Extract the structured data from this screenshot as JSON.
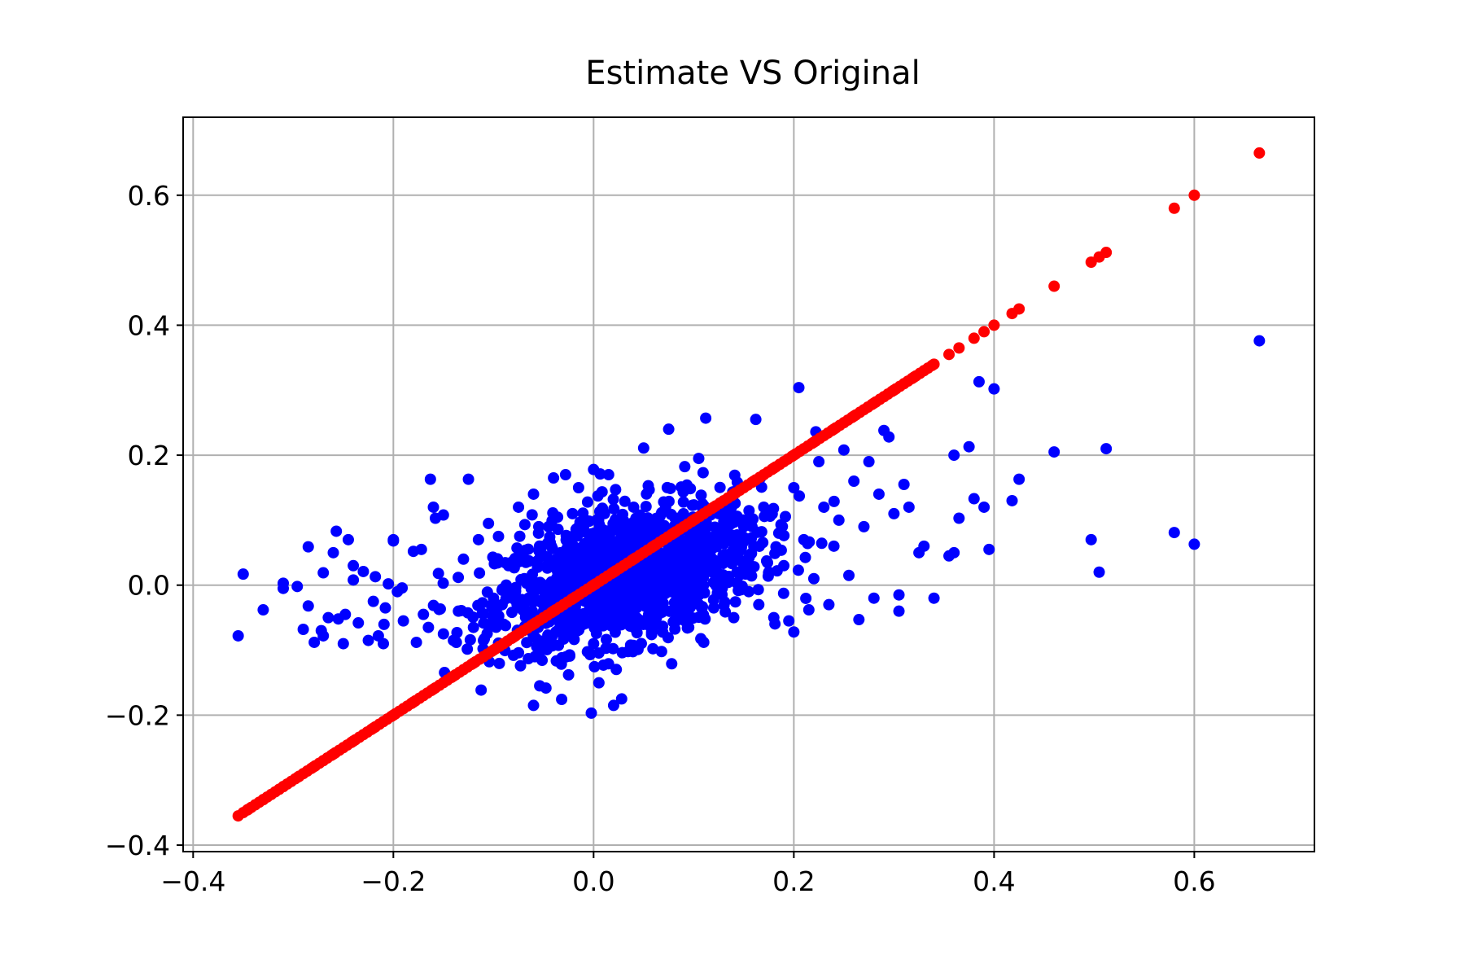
{
  "chart_data": {
    "type": "scatter",
    "title": "Estimate VS Original",
    "xlabel": "",
    "ylabel": "",
    "xlim": [
      -0.41,
      0.72
    ],
    "ylim": [
      -0.41,
      0.72
    ],
    "grid": true,
    "xticks": [
      -0.4,
      -0.2,
      0.0,
      0.2,
      0.4,
      0.6
    ],
    "yticks": [
      -0.4,
      -0.2,
      0.0,
      0.2,
      0.4,
      0.6
    ],
    "xtick_labels": [
      "−0.4",
      "−0.2",
      "0.0",
      "0.2",
      "0.4",
      "0.6"
    ],
    "ytick_labels": [
      "−0.4",
      "−0.2",
      "0.0",
      "0.2",
      "0.4",
      "0.6"
    ],
    "series": [
      {
        "color": "#0000ff",
        "points": [
          [
            -0.355,
            -0.078
          ],
          [
            -0.35,
            0.017
          ],
          [
            -0.33,
            -0.038
          ],
          [
            -0.31,
            -0.005
          ],
          [
            -0.31,
            0.003
          ],
          [
            -0.296,
            -0.002
          ],
          [
            -0.29,
            -0.068
          ],
          [
            -0.285,
            -0.032
          ],
          [
            -0.285,
            0.059
          ],
          [
            -0.279,
            -0.088
          ],
          [
            -0.272,
            -0.07
          ],
          [
            -0.27,
            0.019
          ],
          [
            -0.27,
            -0.078
          ],
          [
            -0.265,
            -0.05
          ],
          [
            -0.26,
            0.05
          ],
          [
            -0.257,
            0.083
          ],
          [
            -0.255,
            -0.052
          ],
          [
            -0.25,
            -0.09
          ],
          [
            -0.248,
            -0.045
          ],
          [
            -0.245,
            0.07
          ],
          [
            -0.24,
            0.03
          ],
          [
            -0.24,
            0.008
          ],
          [
            -0.235,
            -0.058
          ],
          [
            -0.23,
            0.021
          ],
          [
            -0.225,
            -0.085
          ],
          [
            -0.22,
            -0.025
          ],
          [
            -0.218,
            0.013
          ],
          [
            -0.215,
            -0.078
          ],
          [
            -0.21,
            -0.09
          ],
          [
            -0.208,
            -0.035
          ],
          [
            -0.205,
            0.002
          ],
          [
            -0.2,
            0.07
          ],
          [
            -0.2,
            0.068
          ],
          [
            -0.196,
            -0.01
          ],
          [
            -0.19,
            -0.055
          ],
          [
            -0.18,
            0.052
          ],
          [
            -0.177,
            -0.088
          ],
          [
            -0.172,
            0.055
          ],
          [
            -0.17,
            -0.045
          ],
          [
            -0.165,
            -0.065
          ],
          [
            -0.163,
            0.163
          ],
          [
            -0.16,
            0.12
          ],
          [
            -0.158,
            0.103
          ],
          [
            -0.155,
            0.018
          ],
          [
            -0.15,
            0.108
          ],
          [
            -0.15,
            -0.075
          ],
          [
            -0.14,
            -0.085
          ],
          [
            -0.135,
            -0.04
          ],
          [
            -0.13,
            0.04
          ],
          [
            -0.125,
            0.163
          ],
          [
            -0.12,
            -0.065
          ],
          [
            -0.115,
            0.07
          ],
          [
            -0.11,
            -0.085
          ],
          [
            -0.105,
            0.095
          ],
          [
            -0.1,
            -0.02
          ],
          [
            -0.095,
            0.075
          ],
          [
            -0.09,
            -0.06
          ],
          [
            -0.085,
            0.03
          ],
          [
            -0.08,
            -0.108
          ],
          [
            -0.075,
            0.12
          ],
          [
            -0.07,
            0.05
          ],
          [
            -0.065,
            -0.02
          ],
          [
            -0.06,
            0.14
          ],
          [
            -0.06,
            -0.185
          ],
          [
            -0.055,
            0.08
          ],
          [
            -0.05,
            -0.04
          ],
          [
            -0.045,
            0.09
          ],
          [
            -0.04,
            0.165
          ],
          [
            -0.035,
            0.02
          ],
          [
            -0.03,
            -0.083
          ],
          [
            -0.028,
            0.17
          ],
          [
            -0.025,
            -0.138
          ],
          [
            -0.02,
            0.06
          ],
          [
            -0.015,
            0.15
          ],
          [
            -0.01,
            -0.06
          ],
          [
            -0.005,
            0.03
          ],
          [
            0.0,
            0.178
          ],
          [
            0.0,
            -0.09
          ],
          [
            0.005,
            0.1
          ],
          [
            0.01,
            -0.02
          ],
          [
            0.015,
            0.17
          ],
          [
            0.02,
            -0.185
          ],
          [
            0.022,
            0.147
          ],
          [
            0.028,
            -0.175
          ],
          [
            0.03,
            0.04
          ],
          [
            0.035,
            -0.06
          ],
          [
            0.04,
            0.12
          ],
          [
            0.045,
            0.0
          ],
          [
            0.05,
            0.211
          ],
          [
            0.055,
            -0.045
          ],
          [
            0.06,
            0.09
          ],
          [
            0.065,
            0.02
          ],
          [
            0.07,
            0.128
          ],
          [
            0.075,
            0.24
          ],
          [
            0.078,
            -0.121
          ],
          [
            0.08,
            0.05
          ],
          [
            0.085,
            -0.02
          ],
          [
            0.09,
            0.09
          ],
          [
            0.095,
            -0.065
          ],
          [
            0.1,
            0.03
          ],
          [
            0.105,
            0.195
          ],
          [
            0.11,
            -0.088
          ],
          [
            0.112,
            0.257
          ],
          [
            0.115,
            0.06
          ],
          [
            0.12,
            -0.035
          ],
          [
            0.125,
            0.11
          ],
          [
            0.13,
            0.015
          ],
          [
            0.135,
            0.07
          ],
          [
            0.14,
            -0.05
          ],
          [
            0.145,
            0.04
          ],
          [
            0.15,
            0.09
          ],
          [
            0.155,
            -0.01
          ],
          [
            0.16,
            0.06
          ],
          [
            0.162,
            0.255
          ],
          [
            0.165,
            -0.03
          ],
          [
            0.17,
            0.12
          ],
          [
            0.175,
            0.02
          ],
          [
            0.18,
            -0.05
          ],
          [
            0.185,
            0.08
          ],
          [
            0.19,
            0.03
          ],
          [
            0.195,
            -0.055
          ],
          [
            0.2,
            0.15
          ],
          [
            0.2,
            -0.072
          ],
          [
            0.205,
            0.304
          ],
          [
            0.21,
            0.07
          ],
          [
            0.215,
            -0.038
          ],
          [
            0.22,
            0.01
          ],
          [
            0.222,
            0.236
          ],
          [
            0.225,
            0.19
          ],
          [
            0.23,
            0.12
          ],
          [
            0.235,
            -0.03
          ],
          [
            0.24,
            0.06
          ],
          [
            0.245,
            0.1
          ],
          [
            0.25,
            0.208
          ],
          [
            0.255,
            0.015
          ],
          [
            0.26,
            0.16
          ],
          [
            0.265,
            -0.053
          ],
          [
            0.27,
            0.09
          ],
          [
            0.275,
            0.19
          ],
          [
            0.28,
            -0.02
          ],
          [
            0.285,
            0.14
          ],
          [
            0.29,
            0.238
          ],
          [
            0.295,
            0.228
          ],
          [
            0.3,
            0.11
          ],
          [
            0.305,
            -0.015
          ],
          [
            0.305,
            -0.04
          ],
          [
            0.31,
            0.155
          ],
          [
            0.315,
            0.12
          ],
          [
            0.325,
            0.05
          ],
          [
            0.33,
            0.06
          ],
          [
            0.34,
            -0.02
          ],
          [
            0.355,
            0.045
          ],
          [
            0.36,
            0.2
          ],
          [
            0.36,
            0.05
          ],
          [
            0.365,
            0.103
          ],
          [
            0.375,
            0.213
          ],
          [
            0.38,
            0.133
          ],
          [
            0.385,
            0.313
          ],
          [
            0.39,
            0.12
          ],
          [
            0.395,
            0.055
          ],
          [
            0.4,
            0.302
          ],
          [
            0.418,
            0.13
          ],
          [
            0.425,
            0.163
          ],
          [
            0.46,
            0.205
          ],
          [
            0.497,
            0.07
          ],
          [
            0.505,
            0.02
          ],
          [
            0.512,
            0.21
          ],
          [
            0.58,
            0.081
          ],
          [
            0.6,
            0.063
          ],
          [
            0.665,
            0.376
          ]
        ]
      },
      {
        "color": "#ff0000",
        "points": [
          [
            -0.355,
            -0.355
          ],
          [
            -0.345,
            -0.345
          ],
          [
            -0.33,
            -0.33
          ],
          [
            -0.31,
            -0.31
          ],
          [
            -0.295,
            -0.295
          ],
          [
            -0.28,
            -0.28
          ],
          [
            -0.26,
            -0.26
          ],
          [
            -0.24,
            -0.24
          ],
          [
            -0.22,
            -0.22
          ],
          [
            -0.2,
            -0.2
          ],
          [
            -0.18,
            -0.18
          ],
          [
            -0.16,
            -0.16
          ],
          [
            -0.14,
            -0.14
          ],
          [
            -0.12,
            -0.12
          ],
          [
            -0.1,
            -0.1
          ],
          [
            -0.08,
            -0.08
          ],
          [
            -0.06,
            -0.06
          ],
          [
            -0.04,
            -0.04
          ],
          [
            -0.02,
            -0.02
          ],
          [
            0.0,
            0.0
          ],
          [
            0.02,
            0.02
          ],
          [
            0.04,
            0.04
          ],
          [
            0.06,
            0.06
          ],
          [
            0.08,
            0.08
          ],
          [
            0.1,
            0.1
          ],
          [
            0.12,
            0.12
          ],
          [
            0.14,
            0.14
          ],
          [
            0.16,
            0.16
          ],
          [
            0.18,
            0.18
          ],
          [
            0.2,
            0.2
          ],
          [
            0.22,
            0.22
          ],
          [
            0.24,
            0.24
          ],
          [
            0.26,
            0.26
          ],
          [
            0.28,
            0.28
          ],
          [
            0.3,
            0.3
          ],
          [
            0.32,
            0.32
          ],
          [
            0.34,
            0.34
          ],
          [
            0.355,
            0.355
          ],
          [
            0.365,
            0.365
          ],
          [
            0.38,
            0.38
          ],
          [
            0.39,
            0.39
          ],
          [
            0.4,
            0.4
          ],
          [
            0.418,
            0.418
          ],
          [
            0.425,
            0.425
          ],
          [
            0.46,
            0.46
          ],
          [
            0.497,
            0.497
          ],
          [
            0.505,
            0.505
          ],
          [
            0.512,
            0.512
          ],
          [
            0.58,
            0.58
          ],
          [
            0.6,
            0.6
          ],
          [
            0.665,
            0.665
          ]
        ]
      }
    ]
  }
}
